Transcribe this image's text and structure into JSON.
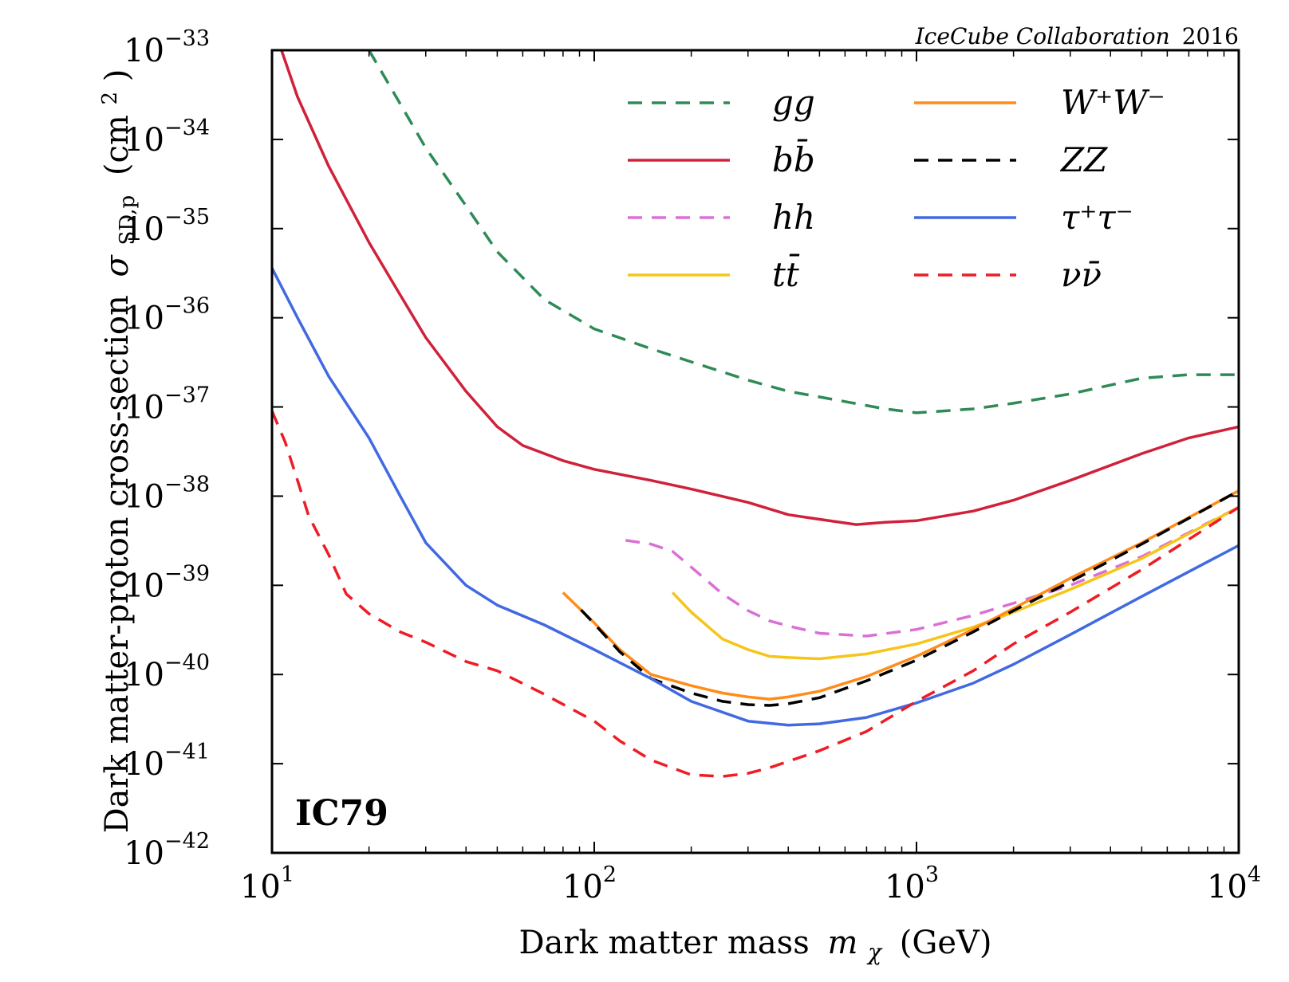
{
  "chart_data": {
    "type": "line",
    "title": "",
    "credit": {
      "italic": "IceCube Collaboration",
      "year": "2016"
    },
    "badge": "IC79",
    "xlabel": {
      "text": "Dark matter mass",
      "symbol": "m",
      "sub": "χ",
      "unit": "(GeV)"
    },
    "ylabel": {
      "text": "Dark matter-proton cross-section",
      "symbol": "σ",
      "sub": "SD,p",
      "unit": "(cm",
      "unit_sup": "2",
      "unit_close": ")"
    },
    "x_scale": "log",
    "y_scale": "log",
    "xlim": [
      10,
      10000
    ],
    "ylim": [
      1e-42,
      1e-33
    ],
    "x_ticks": [
      {
        "base": "10",
        "exp": "1",
        "value": 10
      },
      {
        "base": "10",
        "exp": "2",
        "value": 100
      },
      {
        "base": "10",
        "exp": "3",
        "value": 1000
      },
      {
        "base": "10",
        "exp": "4",
        "value": 10000
      }
    ],
    "y_ticks": [
      {
        "base": "10",
        "exp": "−33",
        "value": 1e-33
      },
      {
        "base": "10",
        "exp": "−34",
        "value": 1e-34
      },
      {
        "base": "10",
        "exp": "−35",
        "value": 1e-35
      },
      {
        "base": "10",
        "exp": "−36",
        "value": 1e-36
      },
      {
        "base": "10",
        "exp": "−37",
        "value": 1e-37
      },
      {
        "base": "10",
        "exp": "−38",
        "value": 1e-38
      },
      {
        "base": "10",
        "exp": "−39",
        "value": 1e-39
      },
      {
        "base": "10",
        "exp": "−40",
        "value": 1e-40
      },
      {
        "base": "10",
        "exp": "−41",
        "value": 1e-41
      },
      {
        "base": "10",
        "exp": "−42",
        "value": 1e-42
      }
    ],
    "grid": false,
    "legend_position": "top-right",
    "series": [
      {
        "name": "gg",
        "label": "gg",
        "color": "#2e8b57",
        "style": "dashed",
        "x": [
          20,
          25,
          30,
          40,
          50,
          70,
          100,
          150,
          200,
          300,
          400,
          600,
          800,
          1000,
          1500,
          2000,
          3000,
          5000,
          7000,
          10000
        ],
        "y": [
          1e-33,
          2.5e-34,
          8e-35,
          1.8e-35,
          5.5e-36,
          1.6e-36,
          7.5e-37,
          4.5e-37,
          3.2e-37,
          2e-37,
          1.5e-37,
          1.15e-37,
          9.5e-38,
          8.6e-38,
          9.5e-38,
          1.1e-37,
          1.4e-37,
          2.1e-37,
          2.3e-37,
          2.3e-37
        ]
      },
      {
        "name": "bb",
        "label": "bb̄",
        "color": "#d0213a",
        "style": "solid",
        "x": [
          10.7,
          12,
          15,
          20,
          25,
          30,
          40,
          50,
          60,
          80,
          100,
          150,
          200,
          300,
          400,
          500,
          650,
          800,
          1000,
          1500,
          2000,
          3000,
          5000,
          7000,
          10000
        ],
        "y": [
          1e-33,
          3e-34,
          5e-35,
          7e-36,
          1.8e-36,
          6e-37,
          1.5e-37,
          6e-38,
          3.7e-38,
          2.5e-38,
          2e-38,
          1.5e-38,
          1.2e-38,
          8.5e-39,
          6.2e-39,
          5.5e-39,
          4.8e-39,
          5.1e-39,
          5.3e-39,
          6.8e-39,
          9e-39,
          1.5e-38,
          3e-38,
          4.5e-38,
          6e-38
        ]
      },
      {
        "name": "hh",
        "label": "hh",
        "color": "#da70d6",
        "style": "dashed",
        "x": [
          125,
          150,
          175,
          200,
          250,
          300,
          350,
          400,
          500,
          700,
          1000,
          1500,
          2000,
          3000,
          5000,
          10000
        ],
        "y": [
          3.2e-39,
          2.9e-39,
          2.4e-39,
          1.6e-39,
          8e-40,
          5.2e-40,
          4e-40,
          3.5e-40,
          2.9e-40,
          2.7e-40,
          3.2e-40,
          4.6e-40,
          6.3e-40,
          1e-39,
          2.1e-39,
          7.5e-39
        ]
      },
      {
        "name": "tt",
        "label": "tt̄",
        "color": "#f5c518",
        "style": "solid",
        "x": [
          175,
          200,
          250,
          300,
          350,
          400,
          500,
          700,
          1000,
          1500,
          2000,
          3000,
          5000,
          10000
        ],
        "y": [
          8.3e-40,
          5e-40,
          2.5e-40,
          1.9e-40,
          1.6e-40,
          1.55e-40,
          1.5e-40,
          1.7e-40,
          2.2e-40,
          3.4e-40,
          5e-40,
          9e-40,
          2e-39,
          7.5e-39
        ]
      },
      {
        "name": "WW",
        "label": "W⁺W⁻",
        "color": "#ff8c1a",
        "style": "solid",
        "x": [
          80,
          100,
          120,
          150,
          200,
          250,
          300,
          350,
          400,
          500,
          700,
          1000,
          1500,
          2000,
          3000,
          5000,
          10000
        ],
        "y": [
          8.3e-40,
          3.8e-40,
          1.9e-40,
          1e-40,
          7.5e-41,
          6.2e-41,
          5.6e-41,
          5.3e-41,
          5.6e-41,
          6.5e-41,
          9.5e-41,
          1.6e-40,
          3.2e-40,
          5.5e-40,
          1.2e-39,
          3e-39,
          1.15e-38
        ]
      },
      {
        "name": "ZZ",
        "label": "ZZ",
        "color": "#000000",
        "style": "dashed",
        "x": [
          91,
          100,
          120,
          150,
          200,
          250,
          300,
          350,
          400,
          500,
          700,
          1000,
          1500,
          2000,
          3000,
          5000,
          10000
        ],
        "y": [
          5.3e-40,
          3.7e-40,
          1.8e-40,
          9e-41,
          6.2e-41,
          5e-41,
          4.6e-41,
          4.5e-41,
          4.7e-41,
          5.5e-41,
          8.5e-41,
          1.45e-40,
          3e-40,
          5.2e-40,
          1.1e-39,
          2.9e-39,
          1.15e-38
        ]
      },
      {
        "name": "tautau",
        "label": "τ⁺τ⁻",
        "color": "#4169e1",
        "style": "solid",
        "x": [
          10,
          12,
          15,
          20,
          25,
          30,
          40,
          50,
          70,
          100,
          150,
          200,
          300,
          400,
          500,
          700,
          1000,
          1500,
          2000,
          3000,
          5000,
          10000
        ],
        "y": [
          3.6e-36,
          1e-36,
          2.2e-37,
          4.5e-38,
          1e-38,
          3e-39,
          1e-39,
          6e-40,
          3.6e-40,
          1.9e-40,
          9e-41,
          5e-41,
          3e-41,
          2.7e-41,
          2.8e-41,
          3.3e-41,
          4.8e-41,
          8e-41,
          1.3e-40,
          2.8e-40,
          7.5e-40,
          2.8e-39
        ]
      },
      {
        "name": "nunu",
        "label": "νν̄",
        "color": "#ee1c25",
        "style": "dashed",
        "x": [
          10,
          11,
          12,
          13,
          15,
          17,
          20,
          25,
          30,
          40,
          50,
          70,
          100,
          120,
          150,
          200,
          250,
          300,
          350,
          500,
          700,
          1000,
          1500,
          2000,
          3000,
          5000,
          10000
        ],
        "y": [
          9e-38,
          4e-38,
          1.5e-38,
          6e-39,
          2.2e-39,
          8e-40,
          4.8e-40,
          3e-40,
          2.3e-40,
          1.4e-40,
          1.1e-40,
          6e-41,
          3e-41,
          1.8e-41,
          1.1e-41,
          7.5e-42,
          7.2e-42,
          7.8e-42,
          9e-42,
          1.4e-41,
          2.3e-41,
          5e-41,
          1.1e-40,
          2.2e-40,
          5e-40,
          1.5e-39,
          7.5e-39
        ]
      }
    ]
  }
}
